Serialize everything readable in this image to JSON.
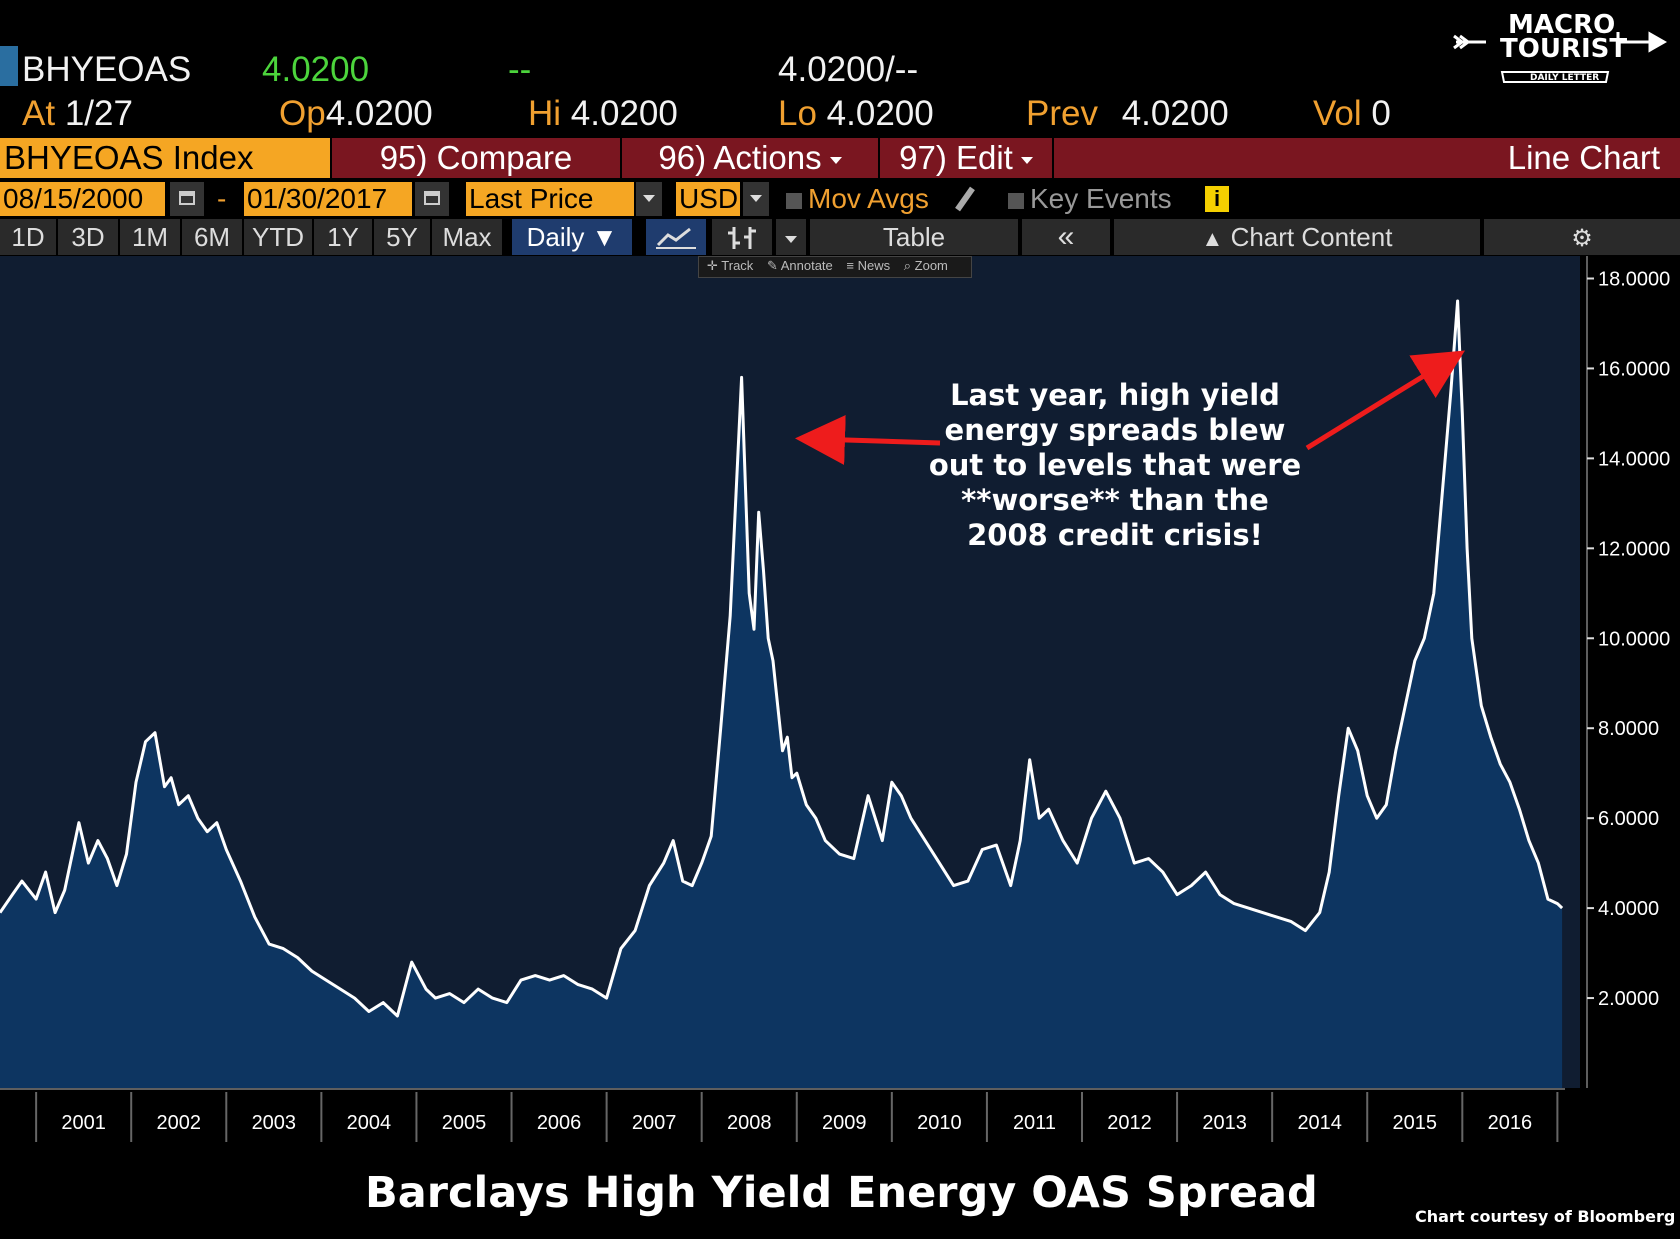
{
  "logo": {
    "line1": "MACRO",
    "line2": "TOURIST",
    "tag": "DAILY LETTER"
  },
  "quote": {
    "ticker": "BHYEOAS",
    "last": "4.0200",
    "change": "--",
    "bid_ask": "4.0200",
    "bid_ask_sep": "/--",
    "at_label": "At",
    "at_value": "1/27",
    "op_label": "Op",
    "op_value": "4.0200",
    "hi_label": "Hi",
    "hi_value": "4.0200",
    "lo_label": "Lo",
    "lo_value": "4.0200",
    "prev_label": "Prev",
    "prev_value": "4.0200",
    "vol_label": "Vol",
    "vol_value": "0"
  },
  "toolbar": {
    "security": "BHYEOAS Index",
    "compare": "95) Compare",
    "actions": "96) Actions",
    "edit": "97) Edit",
    "chart_type": "Line Chart",
    "start_date": "08/15/2000",
    "dash": "-",
    "end_date": "01/30/2017",
    "field": "Last Price",
    "currency": "USD",
    "mov_avgs": "Mov Avgs",
    "key_events": "Key Events",
    "info": "i"
  },
  "timeframes": [
    "1D",
    "3D",
    "1M",
    "6M",
    "YTD",
    "1Y",
    "5Y",
    "Max"
  ],
  "frequency": "Daily ▼",
  "table_label": "Table",
  "collapse_label": "«",
  "chart_content": "Chart Content",
  "mini_tools": [
    "Track",
    "Annotate",
    "News",
    "Zoom"
  ],
  "annotation": "Last year, high yield energy spreads blew out to levels that were **worse** than the 2008 credit crisis!",
  "annotation_lines": [
    "Last year, high yield",
    "energy spreads blew",
    "out to levels that were",
    "**worse** than the",
    "2008 credit crisis!"
  ],
  "bottom_title": "Barclays High Yield Energy OAS Spread",
  "credit": "Chart courtesy of Bloomberg",
  "colors": {
    "fill": "#0d3561",
    "line": "#ffffff",
    "plot_bg": "#101d31",
    "arrow": "#ee1c1c",
    "orange": "#f5a623",
    "menu_red": "#7a1620"
  },
  "chart_data": {
    "type": "area",
    "title": "Barclays High Yield Energy OAS Spread",
    "xlabel": "",
    "ylabel": "",
    "xlim": [
      2000.62,
      2017.08
    ],
    "ylim": [
      0,
      18.5
    ],
    "grid": false,
    "y_ticks": [
      "2.0000",
      "4.0000",
      "6.0000",
      "8.0000",
      "10.0000",
      "12.0000",
      "14.0000",
      "16.0000",
      "18.0000"
    ],
    "x_ticks": [
      "2001",
      "2002",
      "2003",
      "2004",
      "2005",
      "2006",
      "2007",
      "2008",
      "2009",
      "2010",
      "2011",
      "2012",
      "2013",
      "2014",
      "2015",
      "2016"
    ],
    "series": [
      {
        "x": [
          2000.62,
          2000.75,
          2000.85,
          2001.0,
          2001.1,
          2001.2,
          2001.3,
          2001.45,
          2001.55,
          2001.65,
          2001.75,
          2001.85,
          2001.95,
          2002.05,
          2002.15,
          2002.25,
          2002.35,
          2002.42,
          2002.5,
          2002.6,
          2002.7,
          2002.8,
          2002.9,
          2003.0,
          2003.15,
          2003.3,
          2003.45,
          2003.6,
          2003.75,
          2003.9,
          2004.05,
          2004.2,
          2004.35,
          2004.5,
          2004.65,
          2004.8,
          2004.95,
          2005.1,
          2005.2,
          2005.35,
          2005.5,
          2005.65,
          2005.8,
          2005.95,
          2006.1,
          2006.25,
          2006.4,
          2006.55,
          2006.7,
          2006.85,
          2007.0,
          2007.15,
          2007.3,
          2007.45,
          2007.6,
          2007.7,
          2007.8,
          2007.9,
          2008.0,
          2008.1,
          2008.2,
          2008.3,
          2008.42,
          2008.5,
          2008.55,
          2008.6,
          2008.65,
          2008.7,
          2008.75,
          2008.8,
          2008.85,
          2008.9,
          2008.95,
          2009.0,
          2009.1,
          2009.2,
          2009.3,
          2009.45,
          2009.6,
          2009.75,
          2009.9,
          2010.0,
          2010.1,
          2010.2,
          2010.35,
          2010.5,
          2010.65,
          2010.8,
          2010.95,
          2011.1,
          2011.25,
          2011.35,
          2011.45,
          2011.55,
          2011.65,
          2011.8,
          2011.95,
          2012.1,
          2012.25,
          2012.4,
          2012.55,
          2012.7,
          2012.85,
          2013.0,
          2013.15,
          2013.3,
          2013.45,
          2013.6,
          2013.75,
          2013.9,
          2014.05,
          2014.2,
          2014.35,
          2014.5,
          2014.6,
          2014.7,
          2014.8,
          2014.9,
          2015.0,
          2015.1,
          2015.2,
          2015.3,
          2015.4,
          2015.5,
          2015.6,
          2015.7,
          2015.8,
          2015.88,
          2015.95,
          2016.0,
          2016.05,
          2016.1,
          2016.2,
          2016.3,
          2016.4,
          2016.5,
          2016.6,
          2016.7,
          2016.8,
          2016.9,
          2017.0,
          2017.05
        ],
        "values": [
          3.9,
          4.3,
          4.6,
          4.2,
          4.8,
          3.9,
          4.4,
          5.9,
          5.0,
          5.5,
          5.1,
          4.5,
          5.2,
          6.8,
          7.7,
          7.9,
          6.7,
          6.9,
          6.3,
          6.5,
          6.0,
          5.7,
          5.9,
          5.3,
          4.6,
          3.8,
          3.2,
          3.1,
          2.9,
          2.6,
          2.4,
          2.2,
          2.0,
          1.7,
          1.9,
          1.6,
          2.8,
          2.2,
          2.0,
          2.1,
          1.9,
          2.2,
          2.0,
          1.9,
          2.4,
          2.5,
          2.4,
          2.5,
          2.3,
          2.2,
          2.0,
          3.1,
          3.5,
          4.5,
          5.0,
          5.5,
          4.6,
          4.5,
          5.0,
          5.6,
          8.0,
          10.5,
          15.8,
          11.0,
          10.2,
          12.8,
          11.5,
          10.0,
          9.5,
          8.5,
          7.5,
          7.8,
          6.9,
          7.0,
          6.3,
          6.0,
          5.5,
          5.2,
          5.1,
          6.5,
          5.5,
          6.8,
          6.5,
          6.0,
          5.5,
          5.0,
          4.5,
          4.6,
          5.3,
          5.4,
          4.5,
          5.5,
          7.3,
          6.0,
          6.2,
          5.5,
          5.0,
          6.0,
          6.6,
          6.0,
          5.0,
          5.1,
          4.8,
          4.3,
          4.5,
          4.8,
          4.3,
          4.1,
          4.0,
          3.9,
          3.8,
          3.7,
          3.5,
          3.9,
          4.8,
          6.5,
          8.0,
          7.5,
          6.5,
          6.0,
          6.3,
          7.5,
          8.5,
          9.5,
          10.0,
          11.0,
          13.5,
          15.5,
          17.5,
          15.0,
          12.0,
          10.0,
          8.5,
          7.8,
          7.2,
          6.8,
          6.2,
          5.5,
          5.0,
          4.2,
          4.1,
          4.0
        ]
      }
    ],
    "annotation": "Last year, high yield energy spreads blew out to levels that were **worse** than the 2008 credit crisis!"
  }
}
